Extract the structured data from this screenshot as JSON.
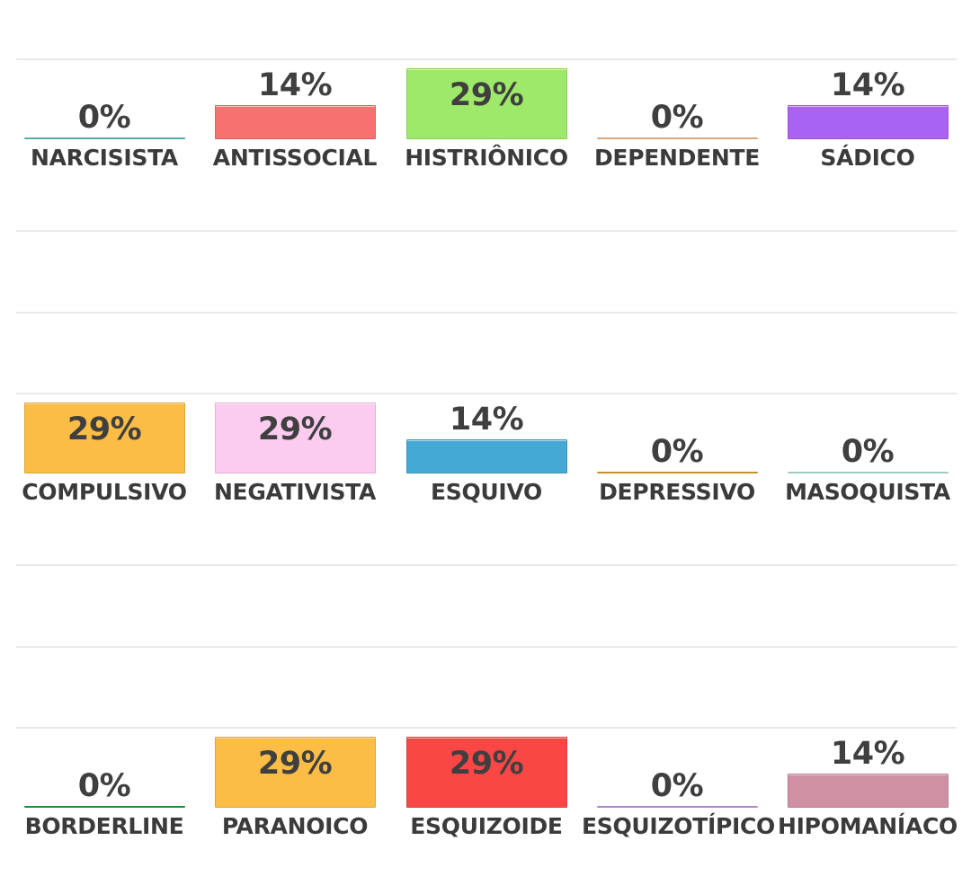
{
  "chart_data": {
    "type": "bar",
    "ylim": [
      0,
      29
    ],
    "value_suffix": "%",
    "grid": true,
    "panels": [
      {
        "categories": [
          "NARCISISTA",
          "ANTISSOCIAL",
          "HISTRIÔNICO",
          "DEPENDENTE",
          "SÁDICO"
        ],
        "values": [
          0,
          14,
          29,
          0,
          14
        ],
        "colors": [
          "#5fc7c2",
          "#f97070",
          "#9ee86a",
          "#f3c089",
          "#aa62f3"
        ],
        "value_labels": [
          "0%",
          "14%",
          "29%",
          "0%",
          "14%"
        ]
      },
      {
        "categories": [
          "COMPULSIVO",
          "NEGATIVISTA",
          "ESQUIVO",
          "DEPRESSIVO",
          "MASOQUISTA"
        ],
        "values": [
          29,
          29,
          14,
          0,
          0
        ],
        "colors": [
          "#fbbd45",
          "#fccbf0",
          "#45a9d5",
          "#e0a337",
          "#b9e5de"
        ],
        "value_labels": [
          "29%",
          "29%",
          "14%",
          "0%",
          "0%"
        ]
      },
      {
        "categories": [
          "BORDERLINE",
          "PARANOICO",
          "ESQUIZOIDE",
          "ESQUIZOTÍPICO",
          "HIPOMANÍACO"
        ],
        "values": [
          0,
          29,
          29,
          0,
          14
        ],
        "colors": [
          "#2e9a3a",
          "#fbbd45",
          "#fb4646",
          "#c795f0",
          "#cf90a4"
        ],
        "value_labels": [
          "0%",
          "29%",
          "29%",
          "0%",
          "14%"
        ]
      }
    ]
  }
}
